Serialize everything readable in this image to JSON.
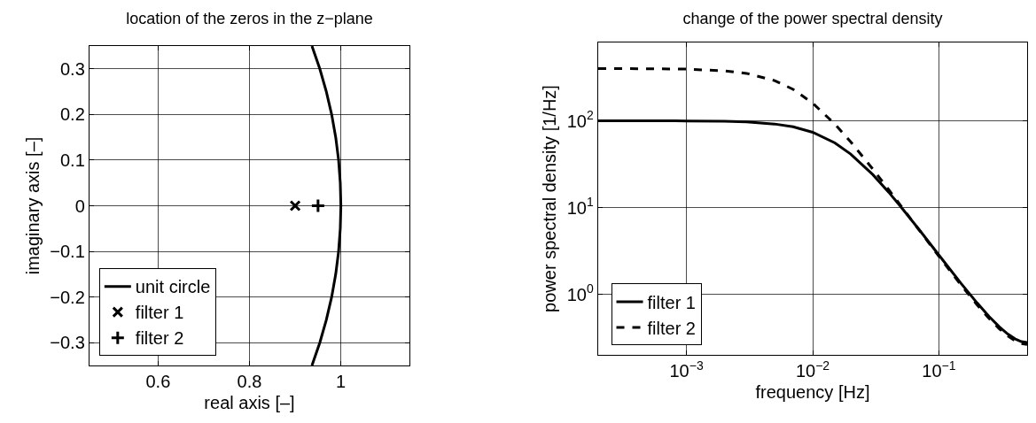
{
  "chart_data": [
    {
      "type": "line",
      "title": "location of the zeros in the z−plane",
      "xlabel": "real axis [–]",
      "ylabel": "imaginary axis [–]",
      "xlim": [
        0.45,
        1.15
      ],
      "xticks": [
        0.6,
        0.8,
        1
      ],
      "ylim": [
        -0.35,
        0.35
      ],
      "yticks": [
        {
          "value": -0.3,
          "label": "−0.3"
        },
        {
          "value": -0.2,
          "label": "−0.2"
        },
        {
          "value": -0.1,
          "label": "−0.1"
        },
        0,
        0.1,
        0.2,
        0.3
      ],
      "grid": true,
      "legend": "bottom left",
      "series": [
        {
          "name": "unit circle",
          "color": "#000000",
          "line_style": "solid",
          "marker": "none",
          "x": [
            0.9367,
            0.9539,
            0.9682,
            0.9798,
            0.9887,
            0.995,
            0.9987,
            1,
            0.9987,
            0.995,
            0.9887,
            0.9798,
            0.9682,
            0.9539,
            0.9367
          ],
          "values": [
            -0.35,
            -0.3,
            -0.25,
            -0.2,
            -0.15,
            -0.1,
            -0.05,
            0,
            0.05,
            0.1,
            0.15,
            0.2,
            0.25,
            0.3,
            0.35
          ]
        },
        {
          "name": "filter 1",
          "type": "scatter",
          "color": "#000000",
          "marker": "x",
          "x": [
            0.9
          ],
          "values": [
            0
          ]
        },
        {
          "name": "filter 2",
          "type": "scatter",
          "color": "#000000",
          "marker": "cross",
          "x": [
            0.95
          ],
          "values": [
            0
          ]
        }
      ]
    },
    {
      "type": "line",
      "title": "change of the power spectral density",
      "xlabel": "frequency [Hz]",
      "ylabel": "power spectral density [1/Hz]",
      "log": "xy",
      "xlim": [
        0.0002,
        0.5
      ],
      "xticks": [
        {
          "value": 0.001,
          "label": "10$^{−3}$"
        },
        {
          "value": 0.01,
          "label": "10$^{−2}$"
        },
        {
          "value": 0.1,
          "label": "10$^{−1}$"
        }
      ],
      "ylim": [
        0.2,
        800
      ],
      "yticks": [
        {
          "value": 1,
          "label": "10$^{0}$"
        },
        {
          "value": 10,
          "label": "10$^{1}$"
        },
        {
          "value": 100,
          "label": "10$^{2}$"
        }
      ],
      "grid": true,
      "legend": "bottom left",
      "x": [
        0.0002,
        0.0005,
        0.001,
        0.002,
        0.003,
        0.005,
        0.007,
        0.01,
        0.015,
        0.02,
        0.03,
        0.04,
        0.05,
        0.07,
        0.1,
        0.15,
        0.2,
        0.25,
        0.3,
        0.35,
        0.4,
        0.45,
        0.5
      ],
      "series": [
        {
          "name": "filter 1",
          "color": "#000000",
          "line_style": "solid",
          "values": [
            99.99,
            99.91,
            99.65,
            98.6,
            96.9,
            91.8,
            85.2,
            73.8,
            55.6,
            41.3,
            23.9,
            15.03,
            10.19,
            5.52,
            2.827,
            1.33,
            0.798,
            0.5525,
            0.4226,
            0.3487,
            0.3062,
            0.2839,
            0.277
          ]
        },
        {
          "name": "filter 2",
          "color": "#000000",
          "line_style": "dashed",
          "values": [
            399.8,
            398.5,
            394.1,
            377.4,
            352.4,
            290.9,
            230.6,
            160,
            91.5,
            57.2,
            27.66,
            16.08,
            10.47,
            5.455,
            2.737,
            1.273,
            0.76,
            0.5256,
            0.4017,
            0.3312,
            0.2907,
            0.2696,
            0.263
          ]
        }
      ]
    }
  ]
}
